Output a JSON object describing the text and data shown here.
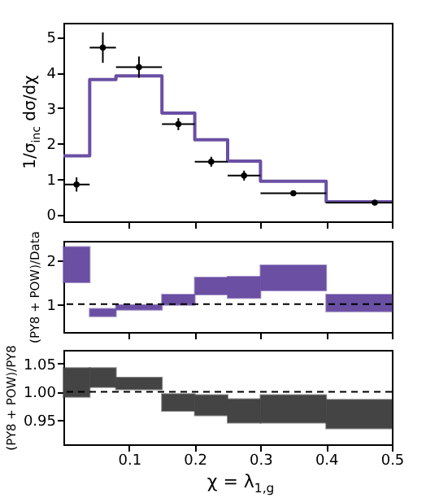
{
  "chart_data": [
    {
      "type": "histogram",
      "ylabel": "1/σ$_{inc}$ dσ/dχ",
      "bins": [
        0,
        0.04,
        0.08,
        0.15,
        0.2,
        0.25,
        0.3,
        0.4,
        0.5
      ],
      "xlim": [
        0,
        0.5
      ],
      "xticks": [
        0.1,
        0.2,
        0.3,
        0.4,
        0.5
      ],
      "ylim": [
        -0.2,
        5.4
      ],
      "yticks": [
        0,
        1,
        2,
        3,
        4,
        5
      ],
      "tick_labels": "y",
      "grid": false,
      "marker": "circle",
      "series": [
        {
          "type": "histogram",
          "color": "#6a4fa3",
          "values": [
            1.65,
            3.8,
            3.9,
            2.85,
            2.1,
            1.5,
            0.93,
            0.35
          ]
        },
        {
          "type": "scatter",
          "color": "#000000",
          "x": [
            0.02,
            0.06,
            0.115,
            0.175,
            0.225,
            0.275,
            0.35,
            0.474
          ],
          "values": [
            0.84,
            4.7,
            4.15,
            2.54,
            1.48,
            1.09,
            0.59,
            0.33
          ],
          "errors": [
            0.2,
            0.43,
            0.3,
            0.17,
            0.14,
            0.14,
            0.07,
            0.03
          ],
          "xerrors": [
            0.02,
            0.02,
            0.035,
            0.025,
            0.025,
            0.025,
            0.05,
            [
              0.4,
              0.5
            ]
          ]
        }
      ]
    },
    {
      "type": "histogram",
      "ylabel": "(PY8 + POW)/Data",
      "bins": [
        0,
        0.04,
        0.08,
        0.15,
        0.2,
        0.25,
        0.3,
        0.4,
        0.5
      ],
      "xlim": [
        0,
        0.5
      ],
      "xticks": [
        0.1,
        0.2,
        0.3,
        0.4,
        0.5
      ],
      "ylim": [
        0.36,
        2.45
      ],
      "yticks": [
        1,
        2
      ],
      "tick_labels": "y",
      "grid": false,
      "color": "#6a4fa3",
      "base": [
        1.5,
        0.72,
        0.87,
        0.98,
        1.22,
        1.14,
        1.31,
        0.83
      ],
      "values": [
        0.81,
        0.17,
        0.11,
        0.24,
        0.39,
        0.49,
        0.58,
        0.39
      ],
      "ref_lines": [
        {
          "axis": "y",
          "value": 1,
          "color": "#000000",
          "line_style": "dashed"
        }
      ]
    },
    {
      "type": "histogram",
      "ylabel": "(PY8 + POW)/PY8",
      "xlabel": "χ = λ$_{1,g}$",
      "bins": [
        0,
        0.04,
        0.08,
        0.15,
        0.2,
        0.25,
        0.3,
        0.4,
        0.5
      ],
      "xlim": [
        0,
        0.5
      ],
      "xticks": [
        0.1,
        0.2,
        0.3,
        0.4,
        0.5
      ],
      "ylim": [
        0.907,
        1.074
      ],
      "yticks": [
        0.95,
        {
          "value": 1,
          "label": "1.00"
        },
        1.05
      ],
      "grid": false,
      "color": "#444444",
      "base": [
        0.991,
        1.008,
        1.004,
        0.966,
        0.958,
        0.945,
        0.945,
        0.935
      ],
      "values": [
        0.051,
        0.034,
        0.021,
        0.03,
        0.036,
        0.042,
        0.049,
        0.051
      ],
      "ref_lines": [
        {
          "axis": "y",
          "value": 1,
          "color": "#000000",
          "line_style": "dashed"
        }
      ]
    }
  ]
}
